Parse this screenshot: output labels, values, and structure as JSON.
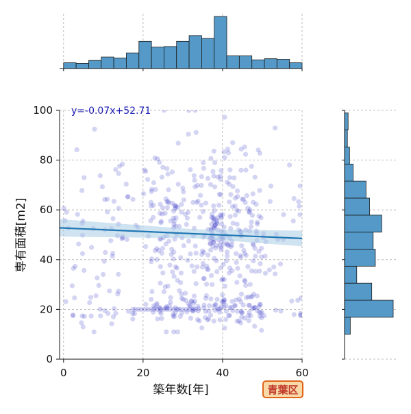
{
  "colors": {
    "point": "#3a3ac8",
    "bar_fill": "#5499c7",
    "bar_edge": "#1a1a1a",
    "regression_line": "#1f77b4",
    "ci_band": "#a9cce3",
    "equation_text": "#1a1ab4",
    "grid": "#aaaaaa",
    "badge_bg": "#f9d9a8",
    "badge_border": "#e0651b",
    "badge_text": "#c0392b"
  },
  "badge": {
    "label": "青葉区"
  },
  "chart_data": {
    "type": "scatter",
    "xlabel": "築年数[年]",
    "ylabel": "専有面積[m2]",
    "xlim": [
      -1,
      60
    ],
    "ylim": [
      0,
      100
    ],
    "xticks": [
      0,
      20,
      40,
      60
    ],
    "yticks": [
      0,
      20,
      40,
      60,
      80,
      100
    ],
    "grid": true,
    "annotation": "y=-0.07x+52.71",
    "regression": {
      "slope": -0.07,
      "intercept": 52.71
    },
    "x_histogram": {
      "bins": [
        0,
        3.16,
        6.32,
        9.47,
        12.63,
        15.79,
        18.95,
        22.11,
        25.26,
        28.42,
        31.58,
        34.74,
        37.89,
        41.05,
        44.21,
        47.37,
        50.53,
        53.68,
        56.84,
        60
      ],
      "counts": [
        10,
        9,
        14,
        20,
        18,
        27,
        47,
        37,
        38,
        47,
        57,
        52,
        90,
        22,
        22,
        15,
        17,
        16,
        10
      ]
    },
    "y_histogram": {
      "bins": [
        10,
        16.84,
        23.68,
        30.53,
        37.37,
        44.21,
        51.05,
        57.89,
        64.74,
        71.58,
        78.42,
        85.26,
        92.11,
        98.95
      ],
      "counts": [
        8,
        68,
        38,
        17,
        43,
        40,
        52,
        35,
        30,
        12,
        7,
        4,
        5
      ]
    }
  }
}
